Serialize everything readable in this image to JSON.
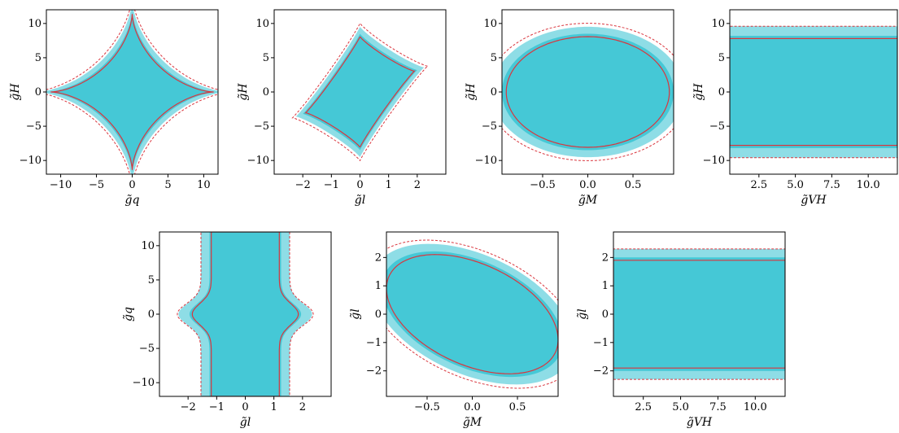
{
  "colors": {
    "fill_inner": "#45c8d6",
    "fill_outer": "#8edde6",
    "contour_solid": "#d9363e",
    "contour_dashed": "#d9363e"
  },
  "chart_data": [
    {
      "type": "contour",
      "shape": "cross",
      "xlabel": "g̃q",
      "ylabel": "g̃H",
      "xlim": [
        -12,
        12
      ],
      "ylim": [
        -12,
        12
      ],
      "xticks": [
        -10,
        -5,
        0,
        5,
        10
      ],
      "xtick_labels": [
        "−10",
        "−5",
        "0",
        "5",
        "10"
      ],
      "yticks": [
        -10,
        -5,
        0,
        5,
        10
      ],
      "ytick_labels": [
        "−10",
        "−5",
        "0",
        "5",
        "10"
      ],
      "params": {
        "cx": 0,
        "cy": 0,
        "hx": 12,
        "hy": 12,
        "sx": 1.2,
        "sy": 0.7,
        "p": 0.5
      }
    },
    {
      "type": "contour",
      "shape": "tiltedcross",
      "xlabel": "g̃l",
      "ylabel": "g̃H",
      "xlim": [
        -3,
        3
      ],
      "ylim": [
        -12,
        12
      ],
      "xticks": [
        -2,
        -1,
        0,
        1,
        2
      ],
      "xtick_labels": [
        "−2",
        "−1",
        "0",
        "1",
        "2"
      ],
      "yticks": [
        -10,
        -5,
        0,
        5,
        10
      ],
      "ytick_labels": [
        "−10",
        "−5",
        "0",
        "5",
        "10"
      ],
      "params": {
        "cx": 0,
        "cy": 0,
        "hx": 2.0,
        "hy": 8.5,
        "p": 0.8
      }
    },
    {
      "type": "contour",
      "shape": "ellipse",
      "xlabel": "g̃M",
      "ylabel": "g̃H",
      "xlim": [
        -0.95,
        0.95
      ],
      "ylim": [
        -12,
        12
      ],
      "xticks": [
        -0.5,
        0.0,
        0.5
      ],
      "xtick_labels": [
        "−0.5",
        "0.0",
        "0.5"
      ],
      "yticks": [
        -10,
        -5,
        0,
        5,
        10
      ],
      "ytick_labels": [
        "−10",
        "−5",
        "0",
        "5",
        "10"
      ],
      "params": {
        "cx": 0,
        "cy": 0,
        "rx": 0.95,
        "ry": 8.5
      }
    },
    {
      "type": "contour",
      "shape": "band",
      "xlabel": "g̃VH",
      "ylabel": "g̃H",
      "xlim": [
        0.5,
        12
      ],
      "ylim": [
        -12,
        12
      ],
      "xticks": [
        2.5,
        5.0,
        7.5,
        10.0
      ],
      "xtick_labels": [
        "2.5",
        "5.0",
        "7.5",
        "10.0"
      ],
      "yticks": [
        -10,
        -5,
        0,
        5,
        10
      ],
      "ytick_labels": [
        "−10",
        "−5",
        "0",
        "5",
        "10"
      ],
      "params": {
        "y_inner": 8.2,
        "y_outer": 9.6
      }
    },
    {
      "type": "contour",
      "shape": "vband",
      "xlabel": "g̃l",
      "ylabel": "g̃q",
      "xlim": [
        -3,
        3
      ],
      "ylim": [
        -12,
        12
      ],
      "xticks": [
        -2,
        -1,
        0,
        1,
        2
      ],
      "xtick_labels": [
        "−2",
        "−1",
        "0",
        "1",
        "2"
      ],
      "yticks": [
        -10,
        -5,
        0,
        5,
        10
      ],
      "ytick_labels": [
        "−10",
        "−5",
        "0",
        "5",
        "10"
      ],
      "params": {
        "x_inner": 1.25,
        "x_outer": 1.55,
        "bulge": 0.7,
        "bulge_y": 0
      }
    },
    {
      "type": "contour",
      "shape": "tiltedellipse",
      "xlabel": "g̃M",
      "ylabel": "g̃l",
      "xlim": [
        -0.95,
        0.95
      ],
      "ylim": [
        -2.9,
        2.9
      ],
      "xticks": [
        -0.5,
        0.0,
        0.5
      ],
      "xtick_labels": [
        "−0.5",
        "0.0",
        "0.5"
      ],
      "yticks": [
        -2,
        -1,
        0,
        1,
        2
      ],
      "ytick_labels": [
        "−2",
        "−1",
        "0",
        "1",
        "2"
      ],
      "params": {
        "rx": 1.0,
        "ry": 2.0,
        "tilt": -0.95
      }
    },
    {
      "type": "contour",
      "shape": "band",
      "xlabel": "g̃VH",
      "ylabel": "g̃l",
      "xlim": [
        0.5,
        12
      ],
      "ylim": [
        -2.9,
        2.9
      ],
      "xticks": [
        2.5,
        5.0,
        7.5,
        10.0
      ],
      "xtick_labels": [
        "2.5",
        "5.0",
        "7.5",
        "10.0"
      ],
      "yticks": [
        -2,
        -1,
        0,
        1,
        2
      ],
      "ytick_labels": [
        "−2",
        "−1",
        "0",
        "1",
        "2"
      ],
      "params": {
        "y_inner": 2.0,
        "y_outer": 2.3
      }
    }
  ]
}
